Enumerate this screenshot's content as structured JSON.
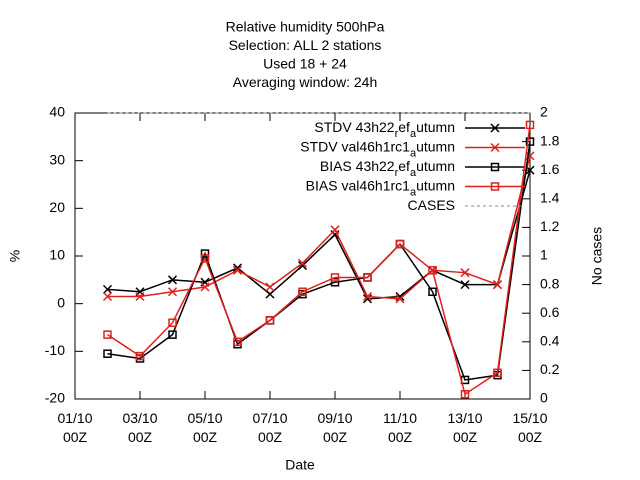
{
  "chart_data": {
    "type": "line",
    "title": [
      "Relative humidity 500hPa",
      "Selection: ALL       2 stations",
      "Used  18 + 24",
      "Averaging window: 24h"
    ],
    "xlabel": "Date",
    "ylabel": "%",
    "y2label": "No cases",
    "x": [
      "02/10 00Z",
      "03/10 00Z",
      "04/10 00Z",
      "05/10 00Z",
      "06/10 00Z",
      "07/10 00Z",
      "08/10 00Z",
      "09/10 00Z",
      "10/10 00Z",
      "11/10 00Z",
      "12/10 00Z",
      "13/10 00Z",
      "14/10 00Z",
      "15/10 00Z"
    ],
    "xlim": [
      "01/10 00Z",
      "15/10 00Z"
    ],
    "xticks": [
      "01/10 00Z",
      "03/10 00Z",
      "05/10 00Z",
      "07/10 00Z",
      "09/10 00Z",
      "11/10 00Z",
      "13/10 00Z",
      "15/10 00Z"
    ],
    "ylim": [
      -20,
      40
    ],
    "yticks": [
      -20,
      -10,
      0,
      10,
      20,
      30,
      40
    ],
    "y2lim": [
      0,
      2
    ],
    "y2ticks": [
      0,
      0.2,
      0.4,
      0.6,
      0.8,
      1,
      1.2,
      1.4,
      1.6,
      1.8,
      2
    ],
    "legend": "top-right",
    "series": [
      {
        "name": "STDV 43h22_ref_autumn",
        "color": "#000000",
        "marker": "x",
        "values": [
          3,
          2.5,
          5,
          4.5,
          7.5,
          2,
          8,
          14.5,
          1,
          1.5,
          7,
          4,
          4,
          28
        ]
      },
      {
        "name": "STDV val46h1rc1_autumn",
        "color": "#e0201b",
        "marker": "x",
        "values": [
          1.5,
          1.5,
          2.5,
          3.5,
          7,
          3.5,
          8.5,
          15.5,
          1.5,
          1,
          7,
          6.5,
          4,
          31
        ]
      },
      {
        "name": "BIAS 43h22_ref_autumn",
        "color": "#000000",
        "marker": "square",
        "values": [
          -10.5,
          -11.5,
          -6.5,
          10.5,
          -8.5,
          -3.5,
          2,
          4.5,
          5.5,
          12.5,
          2.5,
          -16,
          -15,
          34
        ]
      },
      {
        "name": "BIAS val46h1rc1_autumn",
        "color": "#e0201b",
        "marker": "square",
        "values": [
          -6.5,
          -11,
          -4,
          9.5,
          -8,
          -3.5,
          2.5,
          5.5,
          5.5,
          12.5,
          7,
          -19,
          -14.5,
          37.5
        ]
      },
      {
        "name": "CASES",
        "color": "#888888",
        "marker": "dash",
        "axis": "y2",
        "values": [
          2,
          2,
          2,
          2,
          2,
          2,
          2,
          2,
          2,
          2,
          2,
          2,
          2,
          2
        ]
      }
    ]
  }
}
